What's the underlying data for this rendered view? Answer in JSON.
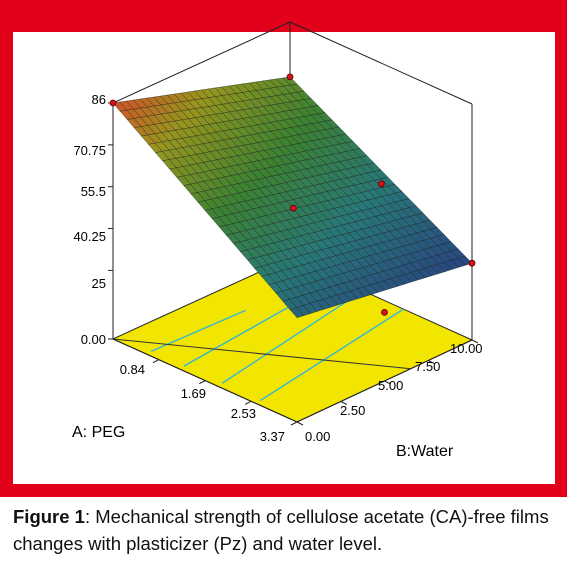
{
  "colors": {
    "frame": "#e3001b",
    "floor": "#f2e500",
    "contour": "#2fb8d8"
  },
  "chart_data": {
    "type": "surface3d",
    "z_ticks": [
      "86",
      "70.75",
      "55.5",
      "40.25",
      "25",
      "0.00"
    ],
    "x_axis": {
      "label": "A: PEG",
      "ticks": [
        "0.84",
        "1.69",
        "2.53",
        "3.37"
      ]
    },
    "y_axis": {
      "label": "B:Water",
      "ticks": [
        "0.00",
        "2.50",
        "5.00",
        "7.50",
        "10.00"
      ]
    },
    "surface_corners": [
      {
        "peg": 0.0,
        "water": 0.0,
        "z": 86
      },
      {
        "peg": 0.0,
        "water": 10.0,
        "z": 66
      },
      {
        "peg": 3.37,
        "water": 0.0,
        "z": 38
      },
      {
        "peg": 3.37,
        "water": 10.0,
        "z": 28
      }
    ],
    "design_points": [
      {
        "peg": 0.0,
        "water": 0.0,
        "z": 86
      },
      {
        "peg": 0.0,
        "water": 10.0,
        "z": 66
      },
      {
        "peg": 1.69,
        "water": 5.0,
        "z": 48
      },
      {
        "peg": 1.69,
        "water": 10.0,
        "z": 42
      },
      {
        "peg": 3.37,
        "water": 10.0,
        "z": 28
      },
      {
        "peg": 3.37,
        "water": 5.0,
        "z": 25
      }
    ]
  },
  "caption": {
    "label": "Figure 1",
    "text": ": Mechanical strength of cellulose acetate (CA)-free films changes with plasticizer (Pz) and water level."
  }
}
